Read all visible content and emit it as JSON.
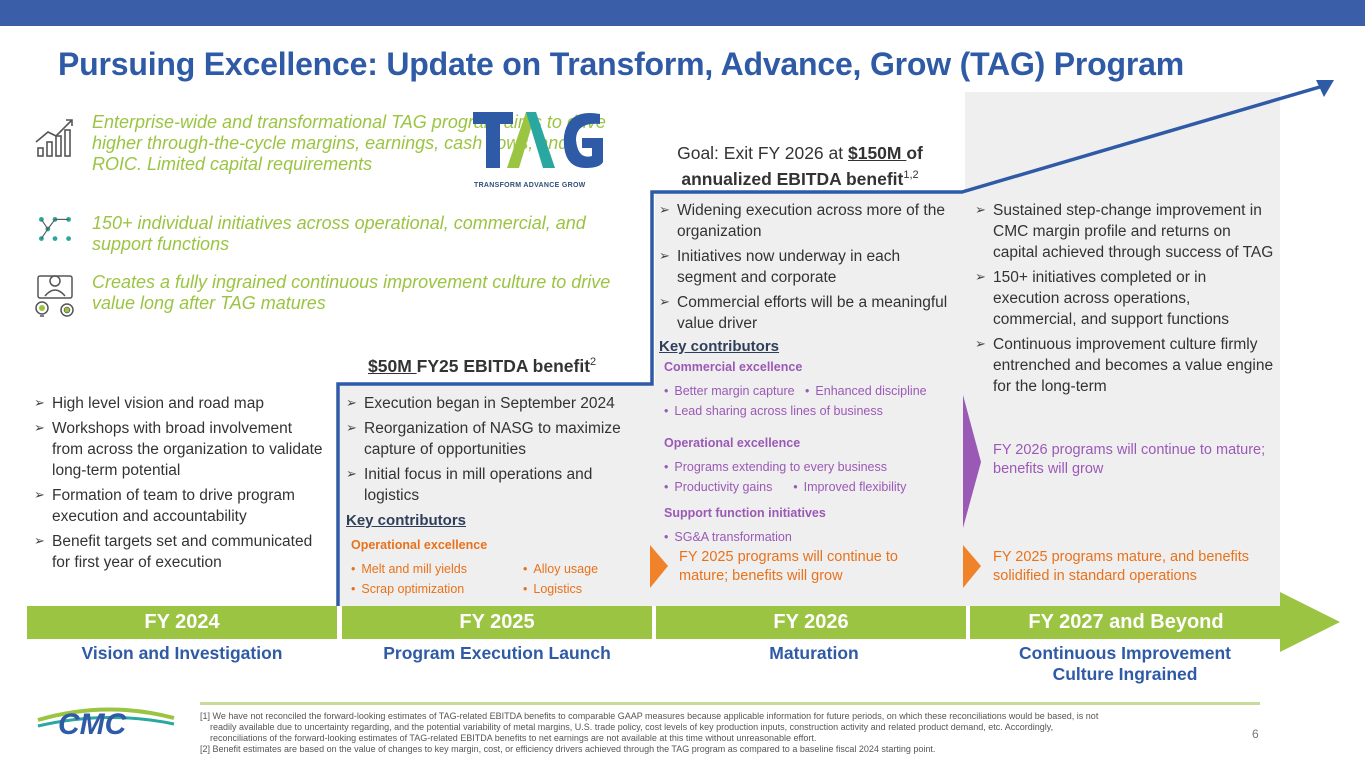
{
  "title": "Pursuing Excellence: Update on Transform, Advance, Grow (TAG) Program",
  "intro": [
    {
      "icon": "growth-chart-icon",
      "text": "Enterprise-wide and transformational TAG program aims to drive higher through-the-cycle margins, earnings, cash flows, and ROIC.  Limited capital requirements"
    },
    {
      "icon": "network-icon",
      "text": "150+ individual initiatives across operational, commercial, and support functions"
    },
    {
      "icon": "team-ideas-icon",
      "text": "Creates a fully ingrained continuous improvement culture to drive value long after TAG matures"
    }
  ],
  "logo": {
    "tag_letters": "TAG",
    "tag_subtitle": "TRANSFORM ADVANCE GROW",
    "company": "CMC",
    "colors": {
      "t": "#2f5aa6",
      "a1": "#9cc443",
      "a2": "#2aa7a0",
      "g": "#2f5aa6"
    }
  },
  "goal": {
    "prefix": "Goal: Exit FY 2026 at ",
    "amount": "$150M ",
    "suffix": "of",
    "line2": "annualized EBITDA benefit",
    "sup": "1,2"
  },
  "benefit_fy25": {
    "amount": "$50M ",
    "text": "FY25 EBITDA benefit",
    "sup": "2"
  },
  "fy2024": {
    "bullets": [
      "High level vision and road map",
      "Workshops with broad involvement from across the organization to validate long-term potential",
      "Formation of team to drive program execution and accountability",
      "Benefit targets set and communicated for first year of execution"
    ]
  },
  "fy2025": {
    "bullets": [
      "Execution began in September 2024",
      "Reorganization of NASG to maximize capture of opportunities",
      "Initial focus in mill operations and logistics"
    ],
    "key_contributors": "Key contributors",
    "group": "Operational excellence",
    "items_left": [
      "Melt and mill yields",
      "Scrap optimization"
    ],
    "items_right": [
      "Alloy usage",
      "Logistics"
    ]
  },
  "fy2026": {
    "bullets": [
      "Widening execution across more of the organization",
      "Initiatives now underway in each segment and corporate",
      "Commercial efforts will be a meaningful value driver"
    ],
    "key_contributors": "Key contributors",
    "groups": [
      {
        "name": "Commercial excellence",
        "rows": [
          [
            "Better margin capture",
            "Enhanced discipline"
          ],
          [
            "Lead sharing across lines of business"
          ]
        ]
      },
      {
        "name": "Operational excellence",
        "rows": [
          [
            "Programs extending to every business"
          ],
          [
            "Productivity gains",
            "Improved flexibility"
          ]
        ]
      },
      {
        "name": "Support function initiatives",
        "rows": [
          [
            "SG&A transformation"
          ]
        ]
      }
    ],
    "carry_forward": "FY 2025 programs will continue to mature; benefits will grow"
  },
  "fy2027": {
    "bullets": [
      "Sustained step-change improvement in CMC margin profile and returns on capital achieved through success of TAG",
      "150+ initiatives completed or in execution across operations, commercial, and support functions",
      "Continuous improvement culture firmly entrenched and becomes a value engine for the long-term"
    ],
    "carry_purple": "FY 2026 programs will continue to mature; benefits will grow",
    "carry_orange": "FY 2025 programs mature, and benefits solidified in standard operations"
  },
  "timeline": [
    {
      "label": "FY 2024",
      "phase": "Vision and Investigation"
    },
    {
      "label": "FY 2025",
      "phase": "Program Execution Launch"
    },
    {
      "label": "FY 2026",
      "phase": "Maturation"
    },
    {
      "label": "FY 2027 and Beyond",
      "phase_line1": "Continuous Improvement",
      "phase_line2": "Culture Ingrained"
    }
  ],
  "footnotes": [
    "[1] We have not reconciled the forward-looking estimates of TAG-related EBITDA benefits to comparable GAAP measures because applicable information for future periods, on which these reconciliations would be based, is not readily available due to uncertainty regarding, and the potential variability of metal margins, U.S. trade policy, cost levels of key production inputs, construction activity and related product demand, etc. Accordingly, reconciliations of the forward-looking estimates of TAG-related EBITDA benefits to net earnings are not available at this time without unreasonable effort.",
    "[2] Benefit estimates are based on the value of changes to key margin, cost, or efficiency drivers achieved through the TAG program as compared to a baseline fiscal 2024 starting point."
  ],
  "page_number": "6",
  "colors": {
    "brand_blue": "#2f5aa6",
    "green": "#9cc443",
    "orange": "#e8721c",
    "purple": "#9b59b6",
    "panel_gray": "#efefef"
  }
}
